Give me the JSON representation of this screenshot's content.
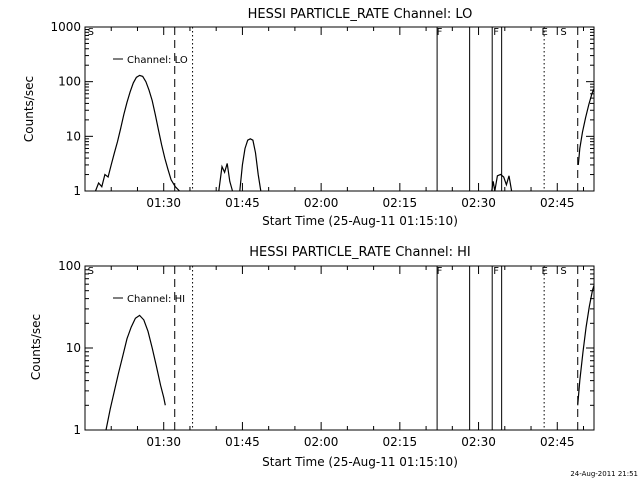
{
  "footer_timestamp": "24-Aug-2011 21:51",
  "chart_data": [
    {
      "type": "line",
      "title": "HESSI PARTICLE_RATE Channel: LO",
      "xlabel": "Start Time (25-Aug-11 01:15:10)",
      "ylabel": "Counts/sec",
      "y_scale": "log",
      "ylim": [
        1,
        1000
      ],
      "xlim_minutes": [
        0,
        97
      ],
      "x_ticks": [
        {
          "t": 15,
          "label": "01:30"
        },
        {
          "t": 30,
          "label": "01:45"
        },
        {
          "t": 45,
          "label": "02:00"
        },
        {
          "t": 60,
          "label": "02:15"
        },
        {
          "t": 75,
          "label": "02:30"
        },
        {
          "t": 90,
          "label": "02:45"
        }
      ],
      "y_ticks": [
        {
          "v": 1,
          "label": "1"
        },
        {
          "v": 10,
          "label": "10"
        },
        {
          "v": 100,
          "label": "100"
        },
        {
          "v": 1000,
          "label": "1000"
        }
      ],
      "legend": {
        "label": "Channel: LO",
        "position": "top-left"
      },
      "markers": [
        {
          "label": "S",
          "t": 0.5
        },
        {
          "label": "F",
          "t": 67.0
        },
        {
          "label": "F",
          "t": 77.8
        },
        {
          "label": "E",
          "t": 87.0
        },
        {
          "label": "S",
          "t": 90.6
        }
      ],
      "vlines": [
        {
          "t": 17.1,
          "style": "dashed"
        },
        {
          "t": 20.5,
          "style": "dotted"
        },
        {
          "t": 67.1,
          "style": "solid"
        },
        {
          "t": 73.3,
          "style": "solid"
        },
        {
          "t": 77.6,
          "style": "solid"
        },
        {
          "t": 79.4,
          "style": "solid"
        },
        {
          "t": 87.5,
          "style": "dotted"
        },
        {
          "t": 93.9,
          "style": "dashed"
        },
        {
          "t": 97.0,
          "style": "dashdot"
        }
      ],
      "series": [
        {
          "name": "Channel: LO",
          "segments": [
            {
              "t": [
                2.0,
                2.6,
                3.2,
                3.8,
                4.4,
                5.0,
                5.6,
                6.2,
                6.8,
                7.4,
                8.0,
                8.6,
                9.2,
                9.8,
                10.4,
                11.0,
                11.6,
                12.2,
                12.8,
                13.4,
                14.0,
                14.6,
                15.2,
                15.8,
                16.4,
                17.2,
                18.0
              ],
              "y": [
                1,
                1.4,
                1.2,
                2,
                1.8,
                3,
                5,
                8,
                14,
                25,
                42,
                65,
                95,
                120,
                130,
                125,
                100,
                70,
                45,
                25,
                13,
                7,
                4,
                2.5,
                1.6,
                1.2,
                1
              ]
            },
            {
              "t": [
                25.5,
                26.1,
                26.6,
                27.1,
                27.6,
                28.1
              ],
              "y": [
                1,
                2.8,
                2.2,
                3.2,
                1.5,
                1
              ]
            },
            {
              "t": [
                29.5,
                30.0,
                30.5,
                31.0,
                31.5,
                32.0,
                32.5,
                33.0,
                33.5
              ],
              "y": [
                1,
                3,
                6,
                8.5,
                9,
                8.5,
                5,
                2,
                1
              ]
            },
            {
              "t": [
                77.5,
                77.8,
                78.1,
                78.6,
                79.2,
                79.8,
                80.3,
                80.8,
                81.3
              ],
              "y": [
                1,
                1.5,
                1,
                1.9,
                2.0,
                1.8,
                1.3,
                1.9,
                1
              ]
            },
            {
              "t": [
                94.0,
                94.3,
                94.8,
                95.4,
                96.0,
                96.6,
                97.0
              ],
              "y": [
                3,
                6,
                12,
                22,
                38,
                60,
                75
              ]
            }
          ]
        }
      ]
    },
    {
      "type": "line",
      "title": "HESSI PARTICLE_RATE Channel: HI",
      "xlabel": "Start Time (25-Aug-11 01:15:10)",
      "ylabel": "Counts/sec",
      "y_scale": "log",
      "ylim": [
        1,
        100
      ],
      "xlim_minutes": [
        0,
        97
      ],
      "x_ticks": [
        {
          "t": 15,
          "label": "01:30"
        },
        {
          "t": 30,
          "label": "01:45"
        },
        {
          "t": 45,
          "label": "02:00"
        },
        {
          "t": 60,
          "label": "02:15"
        },
        {
          "t": 75,
          "label": "02:30"
        },
        {
          "t": 90,
          "label": "02:45"
        }
      ],
      "y_ticks": [
        {
          "v": 1,
          "label": "1"
        },
        {
          "v": 10,
          "label": "10"
        },
        {
          "v": 100,
          "label": "100"
        }
      ],
      "legend": {
        "label": "Channel: HI",
        "position": "top-left"
      },
      "markers": [
        {
          "label": "S",
          "t": 0.5
        },
        {
          "label": "F",
          "t": 67.0
        },
        {
          "label": "F",
          "t": 77.8
        },
        {
          "label": "E",
          "t": 87.0
        },
        {
          "label": "S",
          "t": 90.6
        }
      ],
      "vlines": [
        {
          "t": 17.1,
          "style": "dashed"
        },
        {
          "t": 20.5,
          "style": "dotted"
        },
        {
          "t": 67.1,
          "style": "solid"
        },
        {
          "t": 73.3,
          "style": "solid"
        },
        {
          "t": 77.6,
          "style": "solid"
        },
        {
          "t": 79.4,
          "style": "solid"
        },
        {
          "t": 87.5,
          "style": "dotted"
        },
        {
          "t": 93.9,
          "style": "dashed"
        },
        {
          "t": 97.0,
          "style": "dashdot"
        }
      ],
      "series": [
        {
          "name": "Channel: HI",
          "segments": [
            {
              "t": [
                4.0,
                4.8,
                5.6,
                6.4,
                7.2,
                8.0,
                8.8,
                9.6,
                10.4,
                11.2,
                12.0,
                12.8,
                13.6,
                14.4,
                15.0,
                15.3
              ],
              "y": [
                1,
                1.8,
                3,
                5,
                8,
                13,
                18,
                23,
                25,
                22,
                16,
                10,
                6,
                3.5,
                2.5,
                2
              ]
            },
            {
              "t": [
                93.9,
                94.3,
                94.9,
                95.5,
                96.1,
                96.7,
                97.0
              ],
              "y": [
                2,
                4,
                9,
                18,
                32,
                50,
                58
              ]
            }
          ]
        }
      ]
    }
  ]
}
